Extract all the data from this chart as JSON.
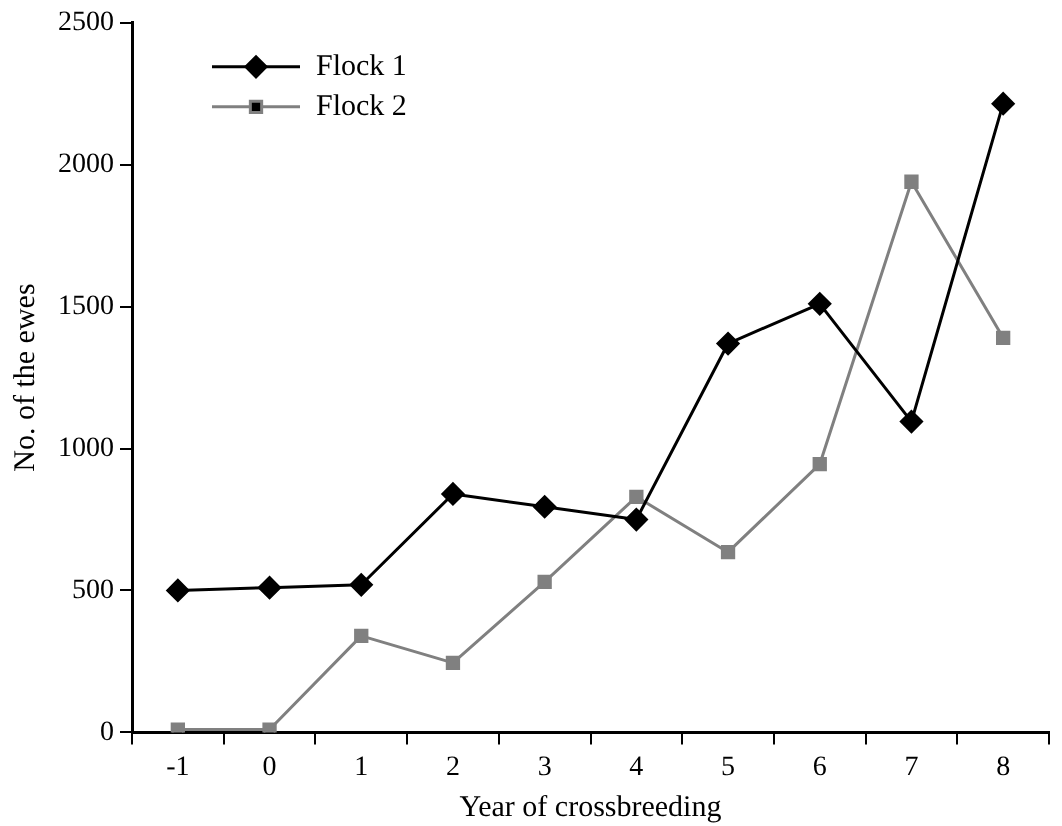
{
  "chart_data": {
    "type": "line",
    "xlabel": "Year of crossbreeding",
    "ylabel": "No. of the ewes",
    "categories": [
      "-1",
      "0",
      "1",
      "2",
      "3",
      "4",
      "5",
      "6",
      "7",
      "8"
    ],
    "series": [
      {
        "name": "Flock 1",
        "color": "#000000",
        "marker": "diamond",
        "values": [
          500,
          510,
          520,
          840,
          795,
          750,
          1370,
          1510,
          1095,
          2215
        ]
      },
      {
        "name": "Flock 2",
        "color": "#808080",
        "marker": "square",
        "values": [
          10,
          10,
          340,
          245,
          530,
          830,
          635,
          945,
          1940,
          1390
        ]
      }
    ],
    "ylim": [
      0,
      2500
    ],
    "yticks": [
      0,
      500,
      1000,
      1500,
      2000,
      2500
    ],
    "grid": false,
    "legend": "top left"
  }
}
